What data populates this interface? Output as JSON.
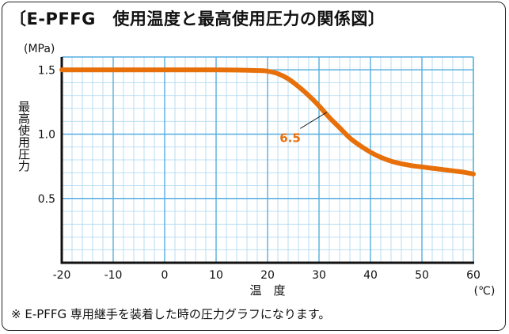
{
  "title": "〔E-PFFG　使用温度と最高使用圧力の関係図〕",
  "footnote": "※ E-PFFG 専用継手を装着した時の圧力グラフになります。",
  "chart_data": {
    "type": "line",
    "xlabel": "温　度",
    "x_unit": "(℃)",
    "ylabel": "最高使用圧力",
    "y_unit": "(MPa)",
    "xlim": [
      -20,
      60
    ],
    "ylim": [
      0,
      1.6
    ],
    "x_ticks": [
      -20,
      -10,
      0,
      10,
      20,
      30,
      40,
      50,
      60
    ],
    "x_tick_labels": [
      "-20",
      "-10",
      "0",
      "10",
      "20",
      "30",
      "40",
      "50",
      "60"
    ],
    "y_ticks": [
      0.5,
      1.0,
      1.5
    ],
    "y_tick_labels": [
      "0.5",
      "1.0",
      "1.5"
    ],
    "grid": true,
    "series": [
      {
        "color": "#e8700a",
        "x": [
          -20,
          -10,
          0,
          10,
          18,
          20,
          22,
          24,
          26,
          28,
          30,
          32,
          34,
          36,
          38,
          40,
          42,
          44,
          46,
          48,
          50,
          52,
          54,
          56,
          58,
          60
        ],
        "y": [
          1.5,
          1.5,
          1.5,
          1.5,
          1.495,
          1.49,
          1.47,
          1.43,
          1.37,
          1.3,
          1.22,
          1.13,
          1.05,
          0.97,
          0.91,
          0.86,
          0.82,
          0.79,
          0.77,
          0.755,
          0.745,
          0.735,
          0.725,
          0.715,
          0.705,
          0.69
        ]
      }
    ],
    "annotations": [
      {
        "text": "6.5",
        "x": 24.5,
        "y": 0.97,
        "target_x": 31.5,
        "target_y": 1.17
      }
    ]
  }
}
